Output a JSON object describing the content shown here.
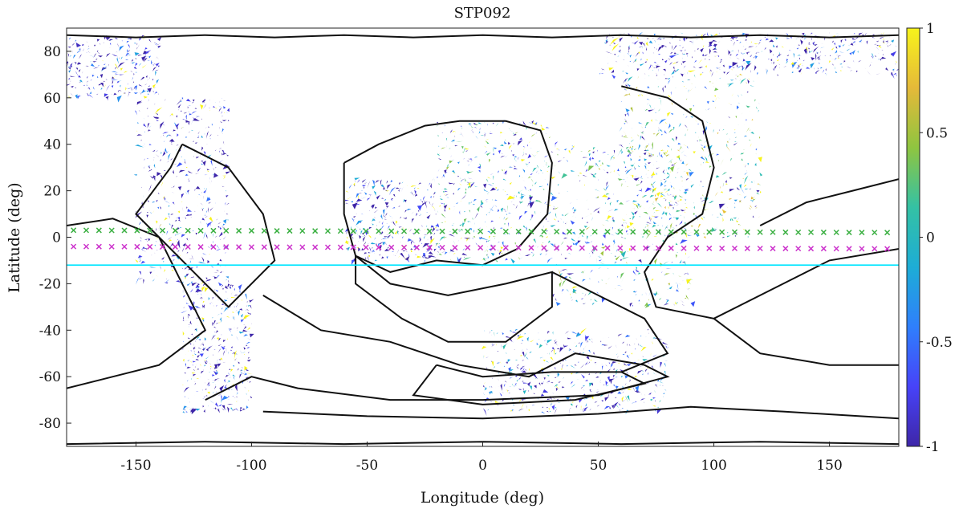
{
  "chart_data": {
    "type": "heatmap",
    "title": "STP092",
    "xlabel": "Longitude (deg)",
    "ylabel": "Latitude (deg)",
    "xlim": [
      -180,
      180
    ],
    "ylim": [
      -90,
      90
    ],
    "xticks": [
      -150,
      -100,
      -50,
      0,
      50,
      100,
      150
    ],
    "yticks": [
      80,
      60,
      40,
      20,
      0,
      -20,
      -40,
      -60,
      -80
    ],
    "colorbar": {
      "ticks": [
        1,
        0.5,
        0,
        -0.5,
        -1
      ],
      "tick_labels": [
        "1",
        "0.5",
        "0",
        "-0.5",
        "-1"
      ],
      "range": [
        -1,
        1
      ],
      "colormap": "parula",
      "colors": [
        "#3e26a8",
        "#4743f8",
        "#2f7ffc",
        "#1dadd6",
        "#34c1a4",
        "#8fc540",
        "#e5b939",
        "#f7f31b"
      ]
    },
    "reference_line": {
      "latitude": -12,
      "color": "#00e5ff"
    },
    "marker_tracks": [
      {
        "color": "#3cb043",
        "marker": "x",
        "lat_start": 3,
        "lat_end": 2,
        "lon_min": -180,
        "lon_max": 180
      },
      {
        "color": "#cc33cc",
        "marker": "x",
        "lat_start": -4,
        "lat_end": -5,
        "lon_min": -180,
        "lon_max": 180
      }
    ],
    "data_regions": [
      {
        "lon": [
          -180,
          -140
        ],
        "lat": [
          60,
          87
        ],
        "mean": -0.9
      },
      {
        "lon": [
          -150,
          -110
        ],
        "lat": [
          -20,
          60
        ],
        "mean": -0.85
      },
      {
        "lon": [
          -130,
          -100
        ],
        "lat": [
          -75,
          -20
        ],
        "mean": -0.8
      },
      {
        "lon": [
          -60,
          -20
        ],
        "lat": [
          -10,
          25
        ],
        "mean": -0.8
      },
      {
        "lon": [
          -20,
          30
        ],
        "lat": [
          -10,
          50
        ],
        "mean": -0.2
      },
      {
        "lon": [
          30,
          90
        ],
        "lat": [
          -30,
          40
        ],
        "mean": -0.1
      },
      {
        "lon": [
          60,
          120
        ],
        "lat": [
          0,
          70
        ],
        "mean": 0.1
      },
      {
        "lon": [
          50,
          180
        ],
        "lat": [
          70,
          88
        ],
        "mean": -0.8
      },
      {
        "lon": [
          0,
          80
        ],
        "lat": [
          -75,
          -40
        ],
        "mean": -0.6
      }
    ]
  }
}
